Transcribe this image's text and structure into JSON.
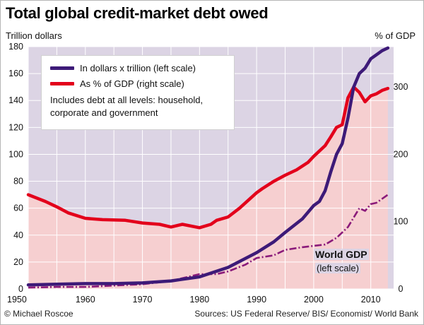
{
  "title": "Total global credit-market debt owed",
  "left_unit": "Trillion dollars",
  "right_unit": "% of GDP",
  "credit": "© Michael Roscoe",
  "sources": "Sources: US Federal Reserve/ BIS/ Economist/ World Bank",
  "legend": {
    "debt_label": "In dollars x trillion (left scale)",
    "pct_label": "As % of GDP (right scale)",
    "note": "Includes debt at all levels: household, corporate and government"
  },
  "gdp_annotation": {
    "name": "World GDP",
    "scale": "(left scale)"
  },
  "colors": {
    "debt": "#3d1a78",
    "pct": "#e3001b",
    "gdp": "#8a1a7a",
    "pct_fill": "#f6cfd0",
    "plot_bg": "#dcd4e4"
  },
  "chart_data": {
    "type": "line",
    "xlim": [
      1950,
      2014
    ],
    "x_ticks": [
      1950,
      1960,
      1970,
      1980,
      1990,
      2000,
      2010
    ],
    "left_ylim": [
      0,
      180
    ],
    "left_ticks": [
      0,
      20,
      40,
      60,
      80,
      100,
      120,
      140,
      160,
      180
    ],
    "right_ylim": [
      0,
      360
    ],
    "right_ticks": [
      0,
      100,
      200,
      300
    ],
    "grid": true,
    "series": [
      {
        "name": "In dollars x trillion (left scale)",
        "axis": "left",
        "style": "solid",
        "x": [
          1950,
          1955,
          1960,
          1965,
          1970,
          1975,
          1980,
          1985,
          1990,
          1993,
          1995,
          1998,
          2000,
          2001,
          2002,
          2003,
          2004,
          2005,
          2006,
          2007,
          2008,
          2009,
          2010,
          2011,
          2012,
          2013
        ],
        "values": [
          3,
          3.5,
          4,
          4,
          4.5,
          6,
          9,
          16,
          27,
          35,
          42,
          52,
          62,
          65,
          73,
          87,
          100,
          108,
          127,
          150,
          160,
          164,
          171,
          174,
          177,
          179
        ]
      },
      {
        "name": "As % of GDP (right scale)",
        "axis": "right",
        "style": "solid-filled",
        "x": [
          1950,
          1953,
          1955,
          1957,
          1960,
          1963,
          1967,
          1970,
          1973,
          1975,
          1977,
          1980,
          1982,
          1983,
          1985,
          1987,
          1990,
          1991,
          1993,
          1995,
          1997,
          1999,
          2000,
          2002,
          2003,
          2004,
          2005,
          2006,
          2007,
          2008,
          2009,
          2010,
          2011,
          2012,
          2013
        ],
        "values": [
          140,
          130,
          122,
          113,
          105,
          103,
          102,
          98,
          96,
          92,
          96,
          91,
          96,
          102,
          107,
          120,
          143,
          149,
          160,
          169,
          177,
          188,
          197,
          213,
          226,
          240,
          244,
          284,
          300,
          292,
          278,
          287,
          290,
          295,
          298
        ]
      },
      {
        "name": "World GDP",
        "axis": "left",
        "style": "dash-dot",
        "x": [
          1950,
          1955,
          1960,
          1965,
          1970,
          1975,
          1980,
          1983,
          1985,
          1988,
          1990,
          1993,
          1995,
          1998,
          2000,
          2002,
          2004,
          2006,
          2008,
          2009,
          2010,
          2011,
          2012,
          2013
        ],
        "values": [
          1,
          1.5,
          1.5,
          2.5,
          3.5,
          6,
          11,
          11,
          13,
          18,
          23,
          25,
          29,
          31,
          32,
          33,
          38,
          46,
          60,
          58,
          63,
          64,
          67,
          70
        ]
      }
    ]
  }
}
